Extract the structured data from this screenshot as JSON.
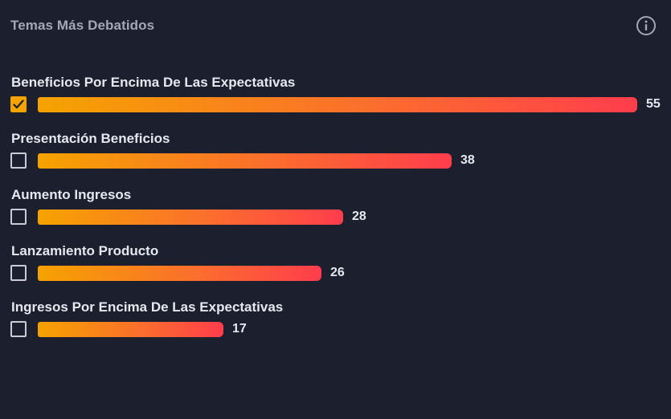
{
  "header": {
    "title": "Temas Más Debatidos",
    "info_icon": "info-icon"
  },
  "max_value": 55,
  "topics": [
    {
      "label": "Beneficios Por Encima De Las Expectativas",
      "value": 55,
      "checked": true
    },
    {
      "label": "Presentación Beneficios",
      "value": 38,
      "checked": false
    },
    {
      "label": "Aumento Ingresos",
      "value": 28,
      "checked": false
    },
    {
      "label": "Lanzamiento Producto",
      "value": 26,
      "checked": false
    },
    {
      "label": "Ingresos Por Encima De Las Expectativas",
      "value": 17,
      "checked": false
    }
  ],
  "colors": {
    "background": "#1b1f2e",
    "bar_start": "#f5a300",
    "bar_end": "#ff3d4c",
    "checkbox_checked": "#f5a300"
  }
}
